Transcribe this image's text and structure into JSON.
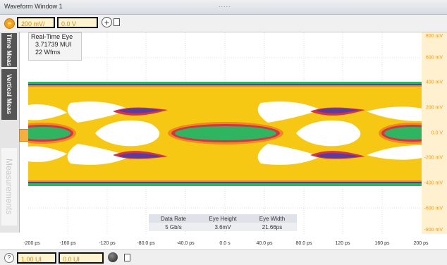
{
  "window": {
    "title": "Waveform Window 1",
    "grip": "....."
  },
  "toolbar": {
    "channel_badge": "⊖",
    "vertical_scale": "200 mV/",
    "vertical_offset": "0.0 V",
    "add_symbol": "+"
  },
  "side_tabs": {
    "time_meas": "Time Meas",
    "vertical_meas": "Vertical Meas",
    "measurements": "Measurements"
  },
  "info_box": {
    "line1": "Real-Time Eye",
    "line2": "3.71739 MUI",
    "line3": "22 Wfms"
  },
  "measurements_table": {
    "headers": [
      "Data Rate",
      "Eye Height",
      "Eye Width"
    ],
    "values": [
      "5 Gb/s",
      "3.6mV",
      "21.66ps"
    ]
  },
  "y_axis": {
    "ticks": [
      "800 mV",
      "600 mV",
      "400 mV",
      "200 mV",
      "0.0 V",
      "-200 mV",
      "-400 mV",
      "-600 mV",
      "-800 mV"
    ]
  },
  "x_axis": {
    "ticks": [
      "-200 ps",
      "-160 ps",
      "-120 ps",
      "-80.0 ps",
      "-40.0 ps",
      "0.0 s",
      "40.0 ps",
      "80.0 ps",
      "120 ps",
      "160 ps",
      "200 ps"
    ]
  },
  "bottom_bar": {
    "help_icon": "?",
    "time_scale": "1.00 UI",
    "time_offset": "0.0 UI"
  },
  "colors": {
    "accent_orange": "#f0a020",
    "eye_yellow": "#f6c814",
    "eye_orange": "#f08a1e",
    "eye_green": "#2fb460",
    "eye_purple": "#5a3ca0",
    "plot_background": "#ffffff"
  }
}
